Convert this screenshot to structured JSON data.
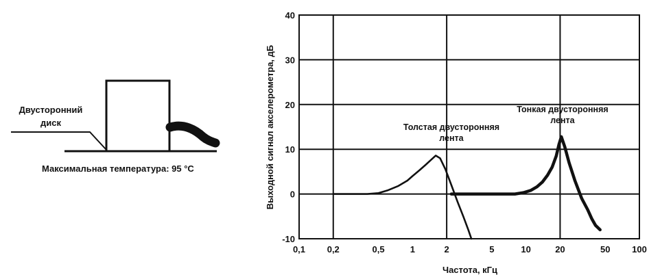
{
  "diagram": {
    "label_line1": "Двусторонний",
    "label_line2": "диск",
    "caption": "Максимальная температура: 95 °С"
  },
  "chart_data": {
    "type": "line",
    "x_scale": "log",
    "xlim": [
      0.1,
      100
    ],
    "ylim": [
      -10,
      40
    ],
    "grid": true,
    "xlabel": "Частота, кГц",
    "ylabel": "Выходной сигнал акселерометра, дБ",
    "x_ticks": [
      0.1,
      0.2,
      0.5,
      1,
      2,
      5,
      10,
      20,
      50,
      100
    ],
    "x_tick_labels": [
      "0,1",
      "0,2",
      "0,5",
      "1",
      "2",
      "5",
      "10",
      "20",
      "50",
      "100"
    ],
    "y_ticks": [
      -10,
      0,
      10,
      20,
      30,
      40
    ],
    "y_tick_labels": [
      "-10",
      "0",
      "10",
      "20",
      "30",
      "40"
    ],
    "x_gridlines": [
      0.2,
      2,
      20
    ],
    "y_gridlines": [
      0,
      10,
      20,
      30
    ],
    "series": [
      {
        "x": [
          0.2,
          0.4,
          0.5,
          0.6,
          0.75,
          0.9,
          1.0,
          1.15,
          1.3,
          1.45,
          1.6,
          1.75,
          1.95,
          2.2,
          2.5,
          2.8,
          3.1,
          3.3
        ],
        "y": [
          0,
          0,
          0.2,
          0.8,
          1.8,
          3.0,
          4.0,
          5.3,
          6.5,
          7.6,
          8.6,
          8.0,
          5.5,
          2.0,
          -1.8,
          -5.0,
          -8.0,
          -10
        ]
      },
      {
        "x": [
          2.2,
          5,
          8,
          9.5,
          11,
          12.5,
          14,
          15.5,
          17,
          18.5,
          19.5,
          20.5,
          22,
          24,
          27,
          31,
          35,
          38,
          41,
          45
        ],
        "y": [
          0,
          0,
          0,
          0.3,
          0.8,
          1.6,
          2.7,
          4.2,
          6.0,
          8.5,
          11.0,
          12.8,
          10.5,
          7.0,
          3.0,
          -1.0,
          -3.5,
          -5.5,
          -7.0,
          -8.0
        ]
      }
    ],
    "annotations": [
      {
        "lines": [
          "Толстая двусторонняя",
          "лента"
        ],
        "at": [
          2.2,
          14.3
        ]
      },
      {
        "lines": [
          "Тонкая двусторонняя",
          "лента"
        ],
        "at": [
          21,
          18.3
        ]
      }
    ]
  }
}
